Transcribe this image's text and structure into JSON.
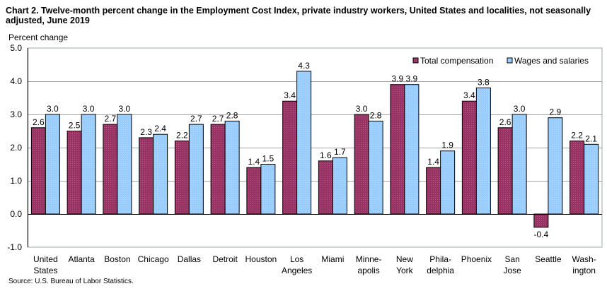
{
  "chart_data": {
    "type": "bar",
    "title": "Chart 2. Twelve-month percent change in the Employment Cost Index, private industry workers, United States and localities, not seasonally adjusted, June 2019",
    "ylabel": "Percent change",
    "xlabel": "",
    "ylim": [
      -1.0,
      5.0
    ],
    "yticks": [
      "5.0",
      "4.0",
      "3.0",
      "2.0",
      "1.0",
      "0.0",
      "-1.0"
    ],
    "ytick_values": [
      5,
      4,
      3,
      2,
      1,
      0,
      -1
    ],
    "grid": true,
    "legend_position": "top-right",
    "categories": [
      [
        "United",
        "States"
      ],
      [
        "Atlanta"
      ],
      [
        "Boston"
      ],
      [
        "Chicago"
      ],
      [
        "Dallas"
      ],
      [
        "Detroit"
      ],
      [
        "Houston"
      ],
      [
        "Los",
        "Angeles"
      ],
      [
        "Miami"
      ],
      [
        "Minne-",
        "apolis"
      ],
      [
        "New",
        "York"
      ],
      [
        "Phila-",
        "delphia"
      ],
      [
        "Phoenix"
      ],
      [
        "San",
        "Jose"
      ],
      [
        "Seattle"
      ],
      [
        "Wash-",
        "ington"
      ]
    ],
    "series": [
      {
        "name": "Total compensation",
        "color": "#993366",
        "values": [
          2.6,
          2.5,
          2.7,
          2.3,
          2.2,
          2.7,
          1.4,
          3.4,
          1.6,
          3.0,
          3.9,
          1.4,
          3.4,
          2.6,
          -0.4,
          2.2
        ]
      },
      {
        "name": "Wages and salaries",
        "color": "#99CCFF",
        "values": [
          3.0,
          3.0,
          3.0,
          2.4,
          2.7,
          2.8,
          1.5,
          4.3,
          1.7,
          2.8,
          3.9,
          1.9,
          3.8,
          3.0,
          2.9,
          2.1
        ]
      }
    ]
  },
  "source": "Source: U.S. Bureau of Labor Statistics."
}
